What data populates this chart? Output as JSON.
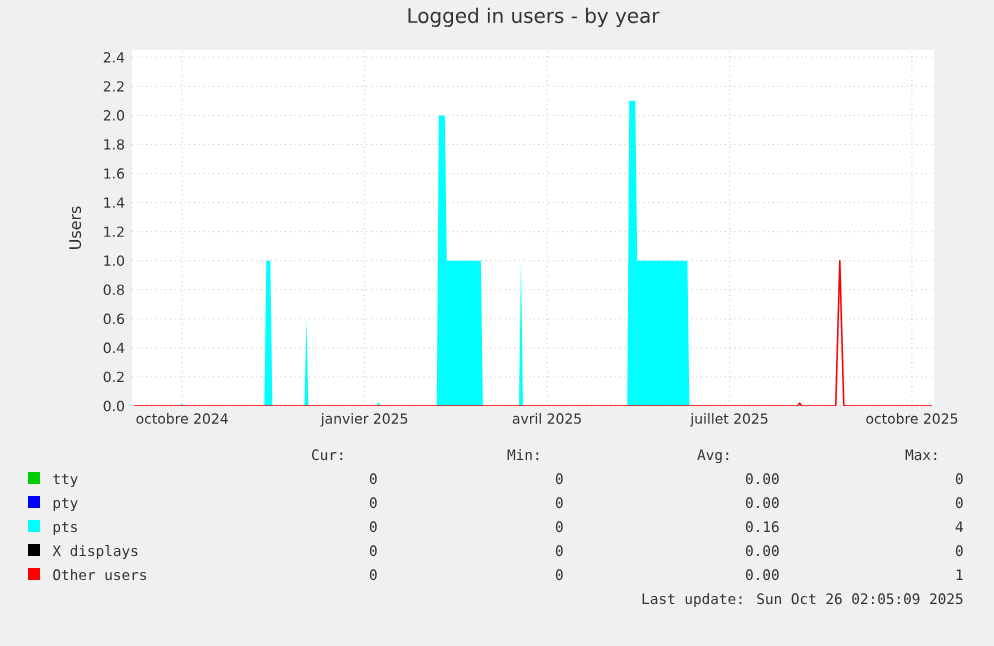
{
  "chart_data": {
    "type": "line",
    "title": "Logged in users - by year",
    "ylabel": "Users",
    "xlim": [
      "2024-09-21",
      "2025-10-26"
    ],
    "ylim": [
      0,
      2.45
    ],
    "xticks": [
      {
        "value": "2024-10-16",
        "label": "octobre 2024"
      },
      {
        "value": "2025-01-15",
        "label": "janvier 2025"
      },
      {
        "value": "2025-04-16",
        "label": "avril 2025"
      },
      {
        "value": "2025-07-16",
        "label": "juillet 2025"
      },
      {
        "value": "2025-10-15",
        "label": "octobre 2025"
      }
    ],
    "yticks": [
      {
        "value": 0,
        "label": "0.0"
      },
      0.2,
      0.4,
      0.6,
      0.8,
      {
        "value": 1,
        "label": "1.0"
      },
      1.2,
      1.4,
      1.6,
      1.8,
      {
        "value": 2,
        "label": "2.0"
      },
      2.2,
      2.4
    ],
    "grid": true,
    "legend": "bottom",
    "series": [
      {
        "name": "tty",
        "color": "#00cc00"
      },
      {
        "name": "pty",
        "color": "#0000ff"
      },
      {
        "name": "pts",
        "color": "#00ffff",
        "type": "area",
        "x": [
          "2024-10-15",
          "2024-10-16",
          "2024-10-17",
          "2024-11-26",
          "2024-11-27",
          "2024-11-29",
          "2024-11-30",
          "2024-12-16",
          "2024-12-17",
          "2024-12-18",
          "2025-01-21",
          "2025-01-22",
          "2025-01-23",
          "2025-02-20",
          "2025-02-21",
          "2025-02-24",
          "2025-02-25",
          "2025-03-14",
          "2025-03-15",
          "2025-04-02",
          "2025-04-03",
          "2025-04-04",
          "2025-05-26",
          "2025-05-27",
          "2025-05-30",
          "2025-05-31",
          "2025-06-25",
          "2025-06-26"
        ],
        "values": [
          0,
          0.02,
          0,
          0,
          1.0,
          1.0,
          0,
          0,
          0.6,
          0,
          0,
          0.03,
          0,
          0,
          2.0,
          2.0,
          1.0,
          1.0,
          0,
          0,
          1.0,
          0,
          0,
          2.1,
          2.1,
          1.0,
          1.0,
          0
        ]
      },
      {
        "name": "X displays",
        "color": "#000000"
      },
      {
        "name": "Other users",
        "color": "#ff0000",
        "x": [
          "2024-09-22",
          "2025-08-19",
          "2025-08-20",
          "2025-08-21",
          "2025-09-07",
          "2025-09-09",
          "2025-09-11",
          "2025-10-25"
        ],
        "values": [
          0,
          0,
          0.02,
          0,
          0,
          1.0,
          0,
          0
        ]
      }
    ],
    "annotations": [
      "Cur:",
      "Min:",
      "Avg:",
      "Max:",
      "0",
      "0",
      "0.00",
      "0",
      "0",
      "0",
      "0.00",
      "0",
      "0",
      "0",
      "0.16",
      "4",
      "0",
      "0",
      "0.00",
      "0",
      "0",
      "0",
      "0.00",
      "1",
      "Last update: Sun Oct 26 02:05:09 2025"
    ]
  }
}
